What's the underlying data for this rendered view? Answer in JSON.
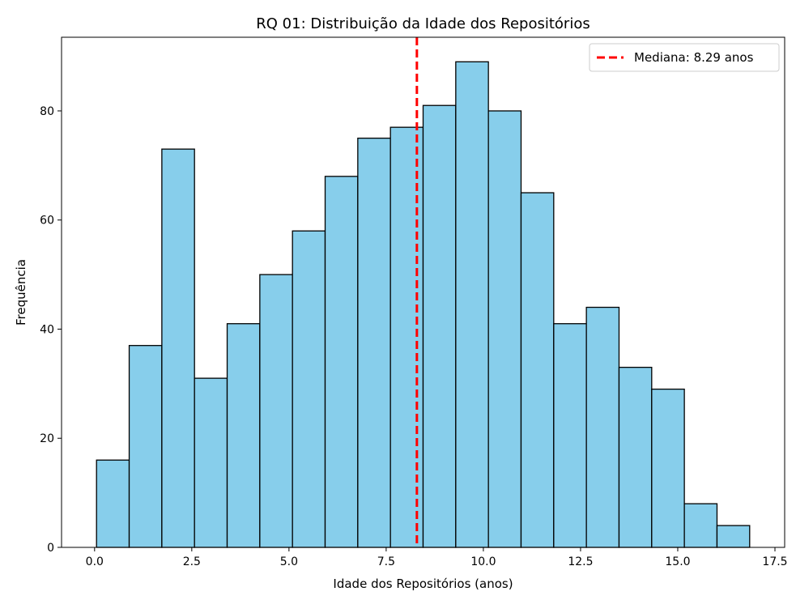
{
  "chart_data": {
    "type": "bar",
    "title": "RQ 01: Distribuição da Idade dos Repositórios",
    "xlabel": "Idade dos Repositórios (anos)",
    "ylabel": "Frequência",
    "xlim": [
      -0.85,
      17.75
    ],
    "ylim": [
      0,
      93.5
    ],
    "x_ticks": [
      0.0,
      2.5,
      5.0,
      7.5,
      10.0,
      12.5,
      15.0,
      17.5
    ],
    "x_tick_labels": [
      "0.0",
      "2.5",
      "5.0",
      "7.5",
      "10.0",
      "12.5",
      "15.0",
      "17.5"
    ],
    "y_ticks": [
      0,
      20,
      40,
      60,
      80
    ],
    "y_tick_labels": [
      "0",
      "20",
      "40",
      "60",
      "80"
    ],
    "bin_edges": [
      0.05,
      0.89,
      1.73,
      2.57,
      3.41,
      4.25,
      5.09,
      5.93,
      6.77,
      7.61,
      8.45,
      9.29,
      10.13,
      10.97,
      11.81,
      12.65,
      13.49,
      14.33,
      15.17,
      16.01,
      16.85
    ],
    "values": [
      16,
      37,
      73,
      31,
      41,
      50,
      58,
      68,
      75,
      77,
      81,
      89,
      80,
      65,
      41,
      44,
      33,
      29,
      8,
      4
    ],
    "bar_color": "#87CEEB",
    "edge_color": "#000000",
    "median": 8.29,
    "median_color": "#FF0000",
    "legend": {
      "label": "Mediana: 8.29 anos",
      "position": "top-right"
    },
    "grid": false
  }
}
